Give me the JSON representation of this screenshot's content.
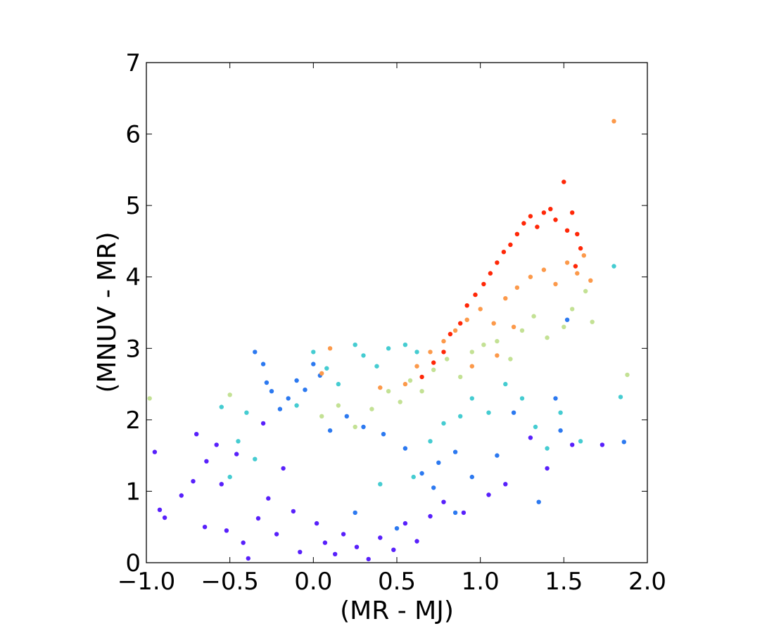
{
  "chart_data": {
    "type": "scatter",
    "xlabel": "(MR - MJ)",
    "ylabel": "(MNUV - MR)",
    "xlim": [
      -1.0,
      2.0
    ],
    "ylim": [
      0,
      7
    ],
    "xticks": [
      -1.0,
      -0.5,
      0.0,
      0.5,
      1.0,
      1.5,
      2.0
    ],
    "xtick_labels": [
      "−1.0",
      "−0.5",
      "0.0",
      "0.5",
      "1.0",
      "1.5",
      "2.0"
    ],
    "yticks": [
      0,
      1,
      2,
      3,
      4,
      5,
      6,
      7
    ],
    "ytick_labels": [
      "0",
      "1",
      "2",
      "3",
      "4",
      "5",
      "6",
      "7"
    ],
    "grid": false,
    "legend": "none",
    "colormap": "rainbow",
    "colormap_stops": [
      "#6a00ff",
      "#2f6bf2",
      "#1fb2e6",
      "#7df2b2",
      "#f2d680",
      "#ff8a3d",
      "#ff1a00"
    ],
    "series": [
      {
        "color_value": 0.05,
        "points": [
          [
            -0.92,
            0.74
          ],
          [
            -0.89,
            0.63
          ],
          [
            -0.79,
            0.94
          ],
          [
            -0.72,
            1.14
          ],
          [
            -0.7,
            1.8
          ],
          [
            -0.65,
            0.5
          ],
          [
            -0.64,
            1.42
          ],
          [
            -0.58,
            1.65
          ],
          [
            -0.55,
            1.1
          ],
          [
            -0.52,
            0.45
          ],
          [
            -0.46,
            1.52
          ],
          [
            -0.42,
            0.28
          ],
          [
            -0.39,
            0.06
          ],
          [
            -0.33,
            0.62
          ],
          [
            -0.3,
            1.95
          ],
          [
            -0.27,
            0.9
          ],
          [
            -0.22,
            0.4
          ],
          [
            -0.18,
            1.32
          ],
          [
            -0.12,
            0.72
          ],
          [
            -0.08,
            0.15
          ],
          [
            0.02,
            0.55
          ],
          [
            0.07,
            0.28
          ],
          [
            0.13,
            0.12
          ],
          [
            0.18,
            0.4
          ],
          [
            0.26,
            0.22
          ],
          [
            0.33,
            0.05
          ],
          [
            0.4,
            0.35
          ],
          [
            0.48,
            0.18
          ],
          [
            0.55,
            0.55
          ],
          [
            0.62,
            0.3
          ],
          [
            0.7,
            0.65
          ],
          [
            0.78,
            0.85
          ],
          [
            0.9,
            0.7
          ],
          [
            1.05,
            0.95
          ],
          [
            1.15,
            1.1
          ],
          [
            1.3,
            1.75
          ],
          [
            1.4,
            1.32
          ],
          [
            1.55,
            1.65
          ],
          [
            1.73,
            1.65
          ],
          [
            -0.95,
            1.55
          ]
        ]
      },
      {
        "color_value": 0.2,
        "points": [
          [
            -0.35,
            2.95
          ],
          [
            -0.3,
            2.78
          ],
          [
            -0.28,
            2.52
          ],
          [
            -0.25,
            2.4
          ],
          [
            -0.2,
            2.15
          ],
          [
            -0.15,
            2.3
          ],
          [
            -0.1,
            2.55
          ],
          [
            -0.05,
            2.42
          ],
          [
            0.0,
            2.78
          ],
          [
            0.04,
            2.62
          ],
          [
            0.1,
            1.85
          ],
          [
            0.2,
            2.05
          ],
          [
            0.3,
            1.9
          ],
          [
            0.42,
            1.8
          ],
          [
            0.55,
            1.6
          ],
          [
            0.65,
            1.25
          ],
          [
            0.75,
            1.4
          ],
          [
            0.85,
            1.55
          ],
          [
            0.95,
            1.2
          ],
          [
            1.1,
            1.5
          ],
          [
            1.2,
            2.1
          ],
          [
            1.35,
            0.85
          ],
          [
            1.48,
            1.85
          ],
          [
            1.52,
            3.4
          ],
          [
            1.86,
            1.69
          ],
          [
            1.45,
            2.3
          ],
          [
            0.85,
            0.7
          ],
          [
            0.72,
            1.05
          ],
          [
            0.5,
            0.48
          ],
          [
            0.25,
            0.7
          ]
        ]
      },
      {
        "color_value": 0.4,
        "points": [
          [
            -0.55,
            2.18
          ],
          [
            -0.5,
            1.2
          ],
          [
            -0.45,
            1.7
          ],
          [
            -0.4,
            2.1
          ],
          [
            -0.35,
            1.45
          ],
          [
            -0.1,
            2.2
          ],
          [
            0.0,
            2.95
          ],
          [
            0.08,
            2.72
          ],
          [
            0.15,
            2.5
          ],
          [
            0.25,
            3.05
          ],
          [
            0.3,
            2.9
          ],
          [
            0.38,
            2.75
          ],
          [
            0.45,
            3.0
          ],
          [
            0.55,
            3.05
          ],
          [
            0.62,
            2.95
          ],
          [
            0.7,
            1.7
          ],
          [
            0.78,
            1.95
          ],
          [
            0.88,
            2.05
          ],
          [
            0.95,
            2.3
          ],
          [
            1.05,
            2.1
          ],
          [
            1.15,
            2.5
          ],
          [
            1.25,
            2.3
          ],
          [
            1.33,
            1.9
          ],
          [
            1.4,
            1.6
          ],
          [
            1.48,
            2.1
          ],
          [
            1.8,
            4.15
          ],
          [
            1.84,
            2.32
          ],
          [
            1.6,
            1.7
          ],
          [
            0.6,
            1.2
          ],
          [
            0.4,
            1.1
          ]
        ]
      },
      {
        "color_value": 0.6,
        "points": [
          [
            -0.98,
            2.3
          ],
          [
            -0.5,
            2.35
          ],
          [
            0.05,
            2.05
          ],
          [
            0.15,
            2.2
          ],
          [
            0.25,
            1.9
          ],
          [
            0.35,
            2.15
          ],
          [
            0.45,
            2.4
          ],
          [
            0.52,
            2.25
          ],
          [
            0.58,
            2.55
          ],
          [
            0.65,
            2.4
          ],
          [
            0.72,
            2.7
          ],
          [
            0.8,
            2.85
          ],
          [
            0.88,
            2.6
          ],
          [
            0.95,
            2.95
          ],
          [
            1.02,
            3.05
          ],
          [
            1.1,
            3.1
          ],
          [
            1.18,
            2.85
          ],
          [
            1.25,
            3.25
          ],
          [
            1.32,
            3.45
          ],
          [
            1.4,
            3.15
          ],
          [
            1.5,
            3.3
          ],
          [
            1.63,
            3.8
          ],
          [
            1.67,
            3.37
          ],
          [
            1.88,
            2.63
          ],
          [
            1.55,
            3.55
          ]
        ]
      },
      {
        "color_value": 0.8,
        "points": [
          [
            0.05,
            2.65
          ],
          [
            0.1,
            3.0
          ],
          [
            0.4,
            2.45
          ],
          [
            0.55,
            2.5
          ],
          [
            0.62,
            2.75
          ],
          [
            0.7,
            2.95
          ],
          [
            0.78,
            3.1
          ],
          [
            0.85,
            3.25
          ],
          [
            0.92,
            3.4
          ],
          [
            1.0,
            3.55
          ],
          [
            1.08,
            3.35
          ],
          [
            1.15,
            3.7
          ],
          [
            1.22,
            3.85
          ],
          [
            1.3,
            4.0
          ],
          [
            1.38,
            4.1
          ],
          [
            1.45,
            3.9
          ],
          [
            1.52,
            4.2
          ],
          [
            1.58,
            4.05
          ],
          [
            1.62,
            4.3
          ],
          [
            1.66,
            3.95
          ],
          [
            1.8,
            6.18
          ],
          [
            1.2,
            3.3
          ],
          [
            1.1,
            2.9
          ],
          [
            0.95,
            2.75
          ]
        ]
      },
      {
        "color_value": 0.98,
        "points": [
          [
            0.65,
            2.6
          ],
          [
            0.72,
            2.8
          ],
          [
            0.78,
            2.95
          ],
          [
            0.82,
            3.2
          ],
          [
            0.88,
            3.35
          ],
          [
            0.92,
            3.6
          ],
          [
            0.97,
            3.75
          ],
          [
            1.02,
            3.9
          ],
          [
            1.06,
            4.05
          ],
          [
            1.1,
            4.2
          ],
          [
            1.14,
            4.35
          ],
          [
            1.18,
            4.45
          ],
          [
            1.22,
            4.6
          ],
          [
            1.26,
            4.75
          ],
          [
            1.3,
            4.85
          ],
          [
            1.34,
            4.7
          ],
          [
            1.38,
            4.9
          ],
          [
            1.42,
            4.95
          ],
          [
            1.45,
            4.8
          ],
          [
            1.5,
            5.33
          ],
          [
            1.52,
            4.65
          ],
          [
            1.55,
            4.9
          ],
          [
            1.58,
            4.6
          ],
          [
            1.6,
            4.4
          ],
          [
            1.57,
            4.15
          ]
        ]
      }
    ]
  }
}
